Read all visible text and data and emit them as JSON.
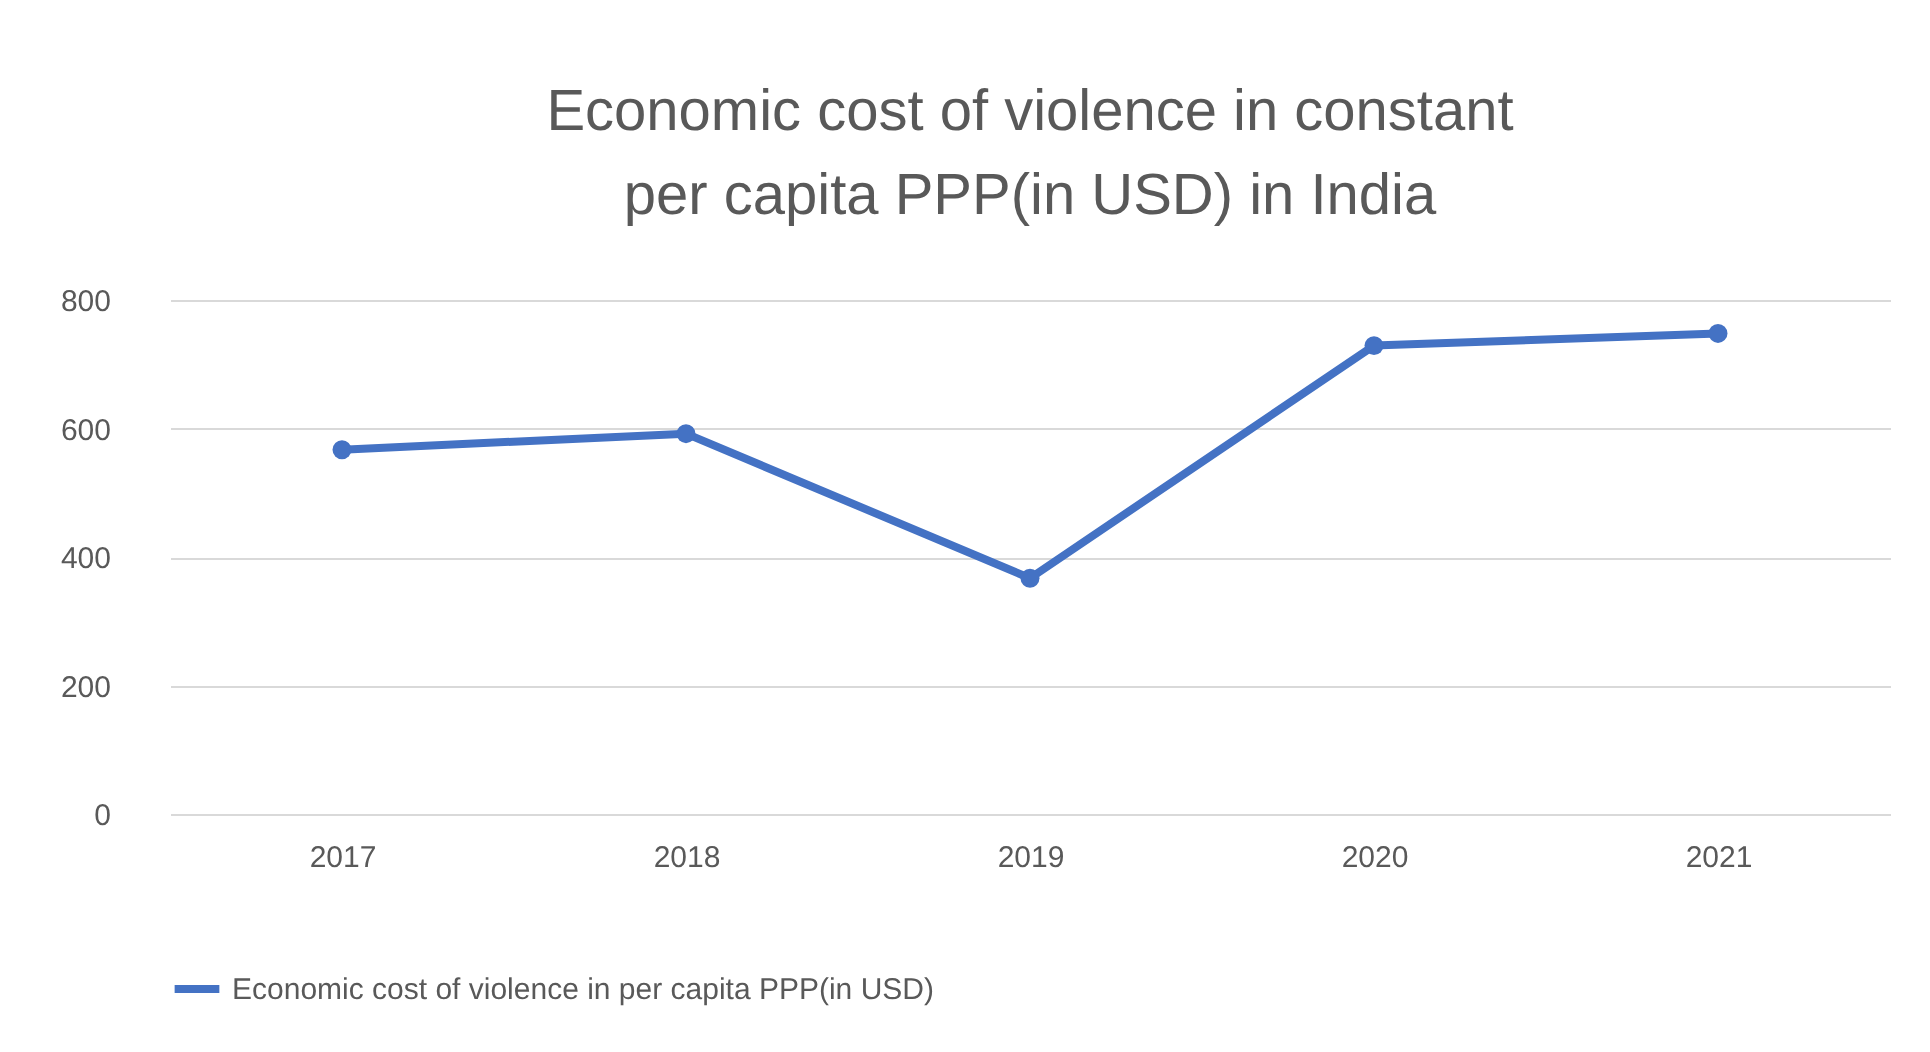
{
  "chart_data": {
    "type": "line",
    "title": "Economic cost of violence in constant per capita PPP(in USD) in India",
    "categories": [
      "2017",
      "2018",
      "2019",
      "2020",
      "2021"
    ],
    "series": [
      {
        "name": "Economic cost of violence in per capita PPP(in USD)",
        "color": "#4472c4",
        "values": [
          567,
          592,
          367,
          729,
          748
        ]
      }
    ],
    "ylim": [
      0,
      800
    ],
    "yticks": [
      0,
      200,
      400,
      600,
      800
    ],
    "grid": "y",
    "legend": "bottom",
    "marker": "circle",
    "line_style": "solid"
  }
}
